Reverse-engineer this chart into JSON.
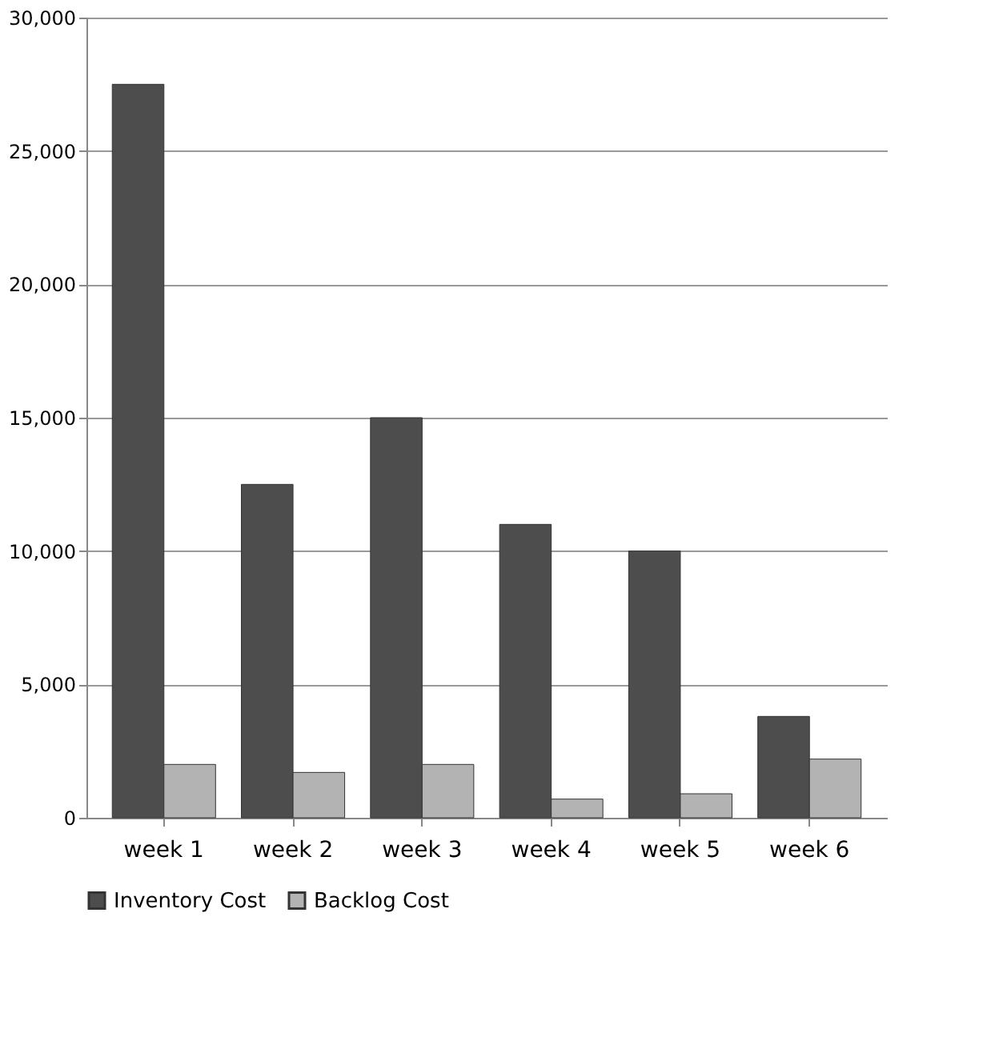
{
  "chart_data": {
    "type": "bar",
    "categories": [
      "week 1",
      "week 2",
      "week 3",
      "week 4",
      "week 5",
      "week 6"
    ],
    "series": [
      {
        "name": "Inventory Cost",
        "color": "#4d4d4d",
        "values": [
          27500,
          12500,
          15000,
          11000,
          10000,
          3800
        ]
      },
      {
        "name": "Backlog Cost",
        "color": "#b3b3b3",
        "values": [
          2000,
          1700,
          2000,
          700,
          900,
          2200
        ]
      }
    ],
    "ylim": [
      0,
      30000
    ],
    "yticks": [
      {
        "value": 0,
        "label": "0"
      },
      {
        "value": 5000,
        "label": "5,000"
      },
      {
        "value": 10000,
        "label": "10,000"
      },
      {
        "value": 15000,
        "label": "15,000"
      },
      {
        "value": 20000,
        "label": "20,000"
      },
      {
        "value": 25000,
        "label": "25,000"
      },
      {
        "value": 30000,
        "label": "30,000"
      }
    ],
    "grid": "y",
    "legend": "bottom"
  }
}
